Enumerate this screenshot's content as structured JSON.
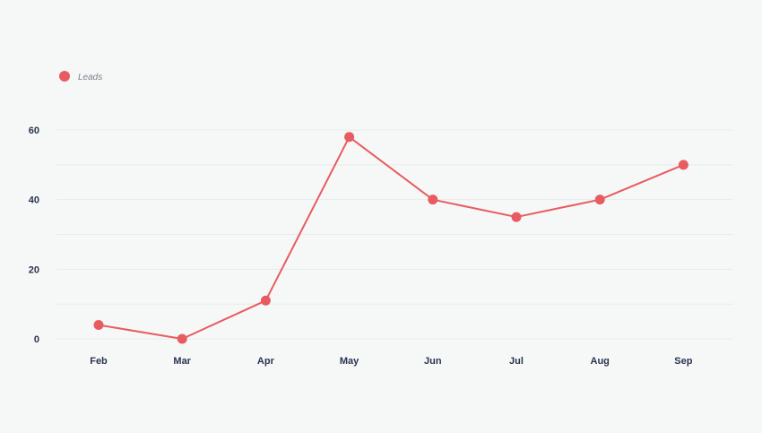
{
  "colors": {
    "background": "#f5f8f7",
    "series": "#e85c61",
    "grid": "#e6ecea",
    "tick_text": "#2b3450",
    "legend_text": "#7a7f8c"
  },
  "legend": {
    "label": "Leads",
    "placement": "top-left"
  },
  "chart_data": {
    "type": "line",
    "title": "",
    "xlabel": "",
    "ylabel": "",
    "categories": [
      "Feb",
      "Mar",
      "Apr",
      "May",
      "Jun",
      "Jul",
      "Aug",
      "Sep"
    ],
    "series": [
      {
        "name": "Leads",
        "values": [
          4,
          0,
          11,
          58,
          40,
          35,
          40,
          50
        ]
      }
    ],
    "ylim": [
      0,
      60
    ],
    "y_ticks": [
      0,
      20,
      40,
      60
    ],
    "y_tick_labels": [
      "0",
      "20",
      "40",
      "60"
    ],
    "grid": true,
    "legend_position": "top-left"
  }
}
